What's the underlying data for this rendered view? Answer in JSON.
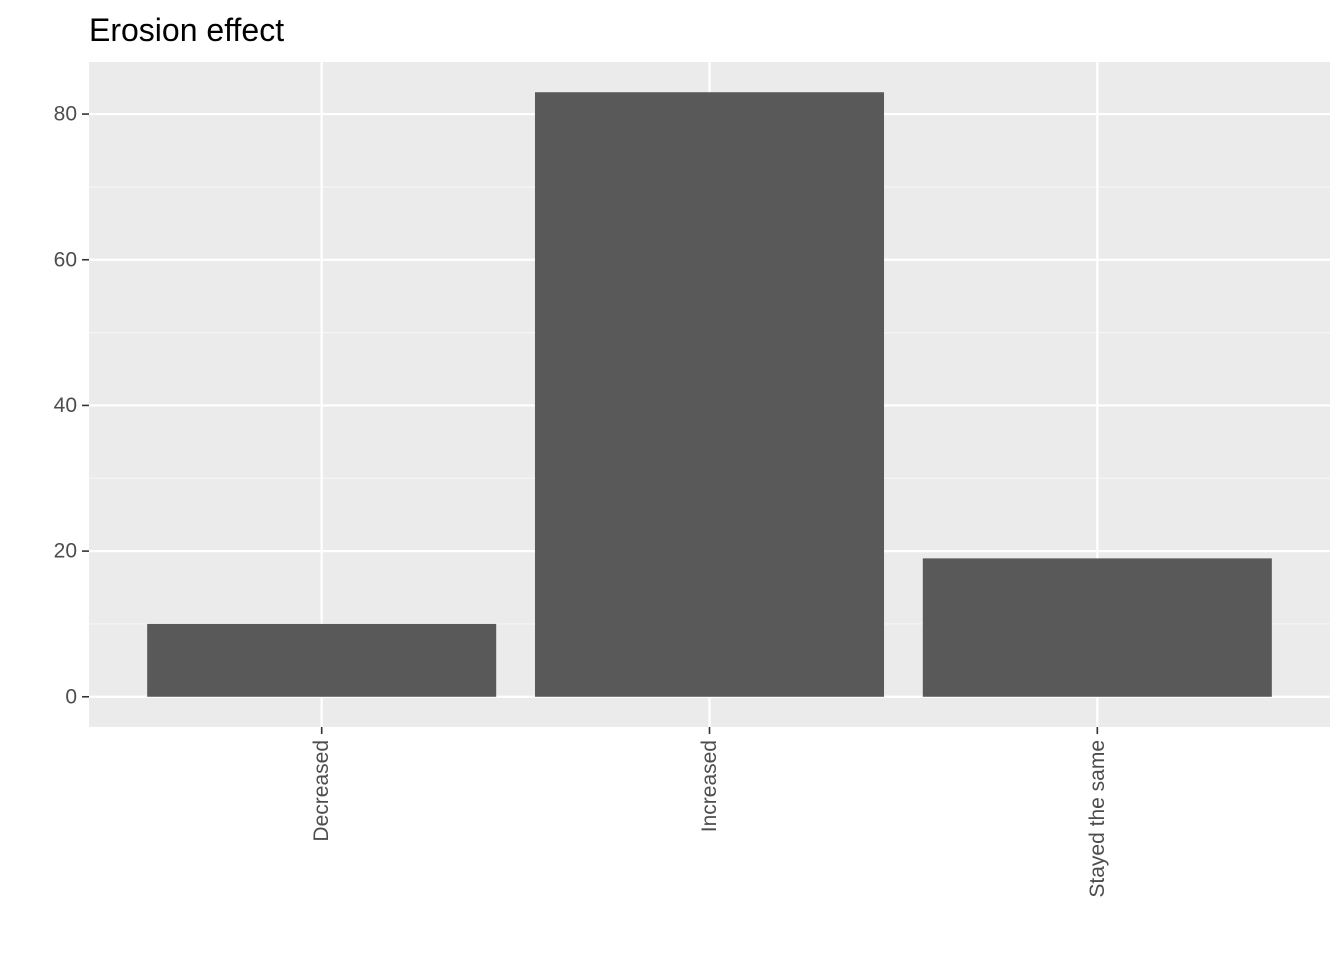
{
  "chart_data": {
    "type": "bar",
    "title": "Erosion effect",
    "xlabel": "",
    "ylabel": "",
    "categories": [
      "Decreased",
      "Increased",
      "Stayed the same"
    ],
    "values": [
      10,
      83,
      19
    ],
    "ylim": [
      -4.15,
      87.15
    ],
    "y_ticks": [
      0,
      20,
      40,
      60,
      80
    ],
    "x_tick_label_rotation": "vertical",
    "grid": true,
    "legend": "none",
    "colors": {
      "bar": "#595959",
      "panel_background": "#ebebeb",
      "grid_major": "#ffffff",
      "grid_minor": "#f5f5f5",
      "tick_text": "#4d4d4d",
      "tick_mark": "#333333"
    }
  }
}
